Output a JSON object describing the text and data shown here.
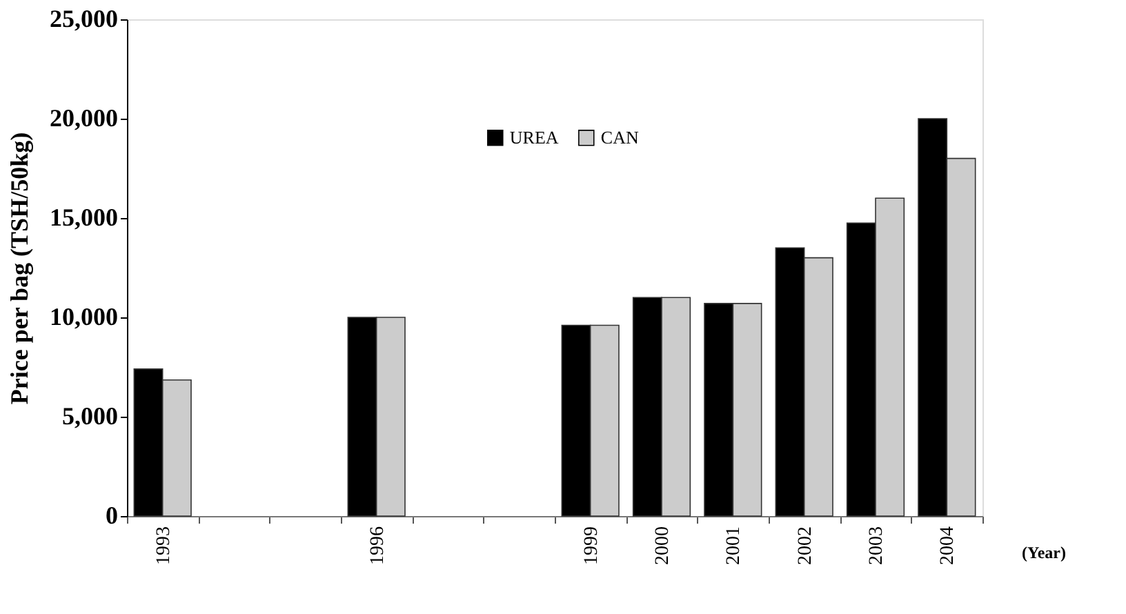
{
  "chart_data": {
    "type": "bar",
    "ylabel": "Price per bag (TSH/50kg)",
    "xlabel": "(Year)",
    "categories": [
      "1993",
      null,
      null,
      "1996",
      null,
      null,
      "1999",
      "2000",
      "2001",
      "2002",
      "2003",
      "2004"
    ],
    "series": [
      {
        "name": "UREA",
        "color": "#000000",
        "values": [
          7400,
          null,
          null,
          10000,
          null,
          null,
          9600,
          11000,
          10700,
          13500,
          14750,
          20000
        ]
      },
      {
        "name": "CAN",
        "color": "#cccccc",
        "values": [
          6850,
          null,
          null,
          10000,
          null,
          null,
          9600,
          11000,
          10700,
          13000,
          16000,
          18000
        ]
      }
    ],
    "ylim": [
      0,
      25000
    ],
    "yticks": [
      0,
      {
        "value": 5000,
        "label": "5,000"
      },
      {
        "value": 10000,
        "label": "10,000"
      },
      {
        "value": 15000,
        "label": "15,000"
      },
      {
        "value": 20000,
        "label": "20,000"
      },
      {
        "value": 25000,
        "label": "25,000"
      }
    ],
    "grid": false,
    "legend": "top"
  }
}
